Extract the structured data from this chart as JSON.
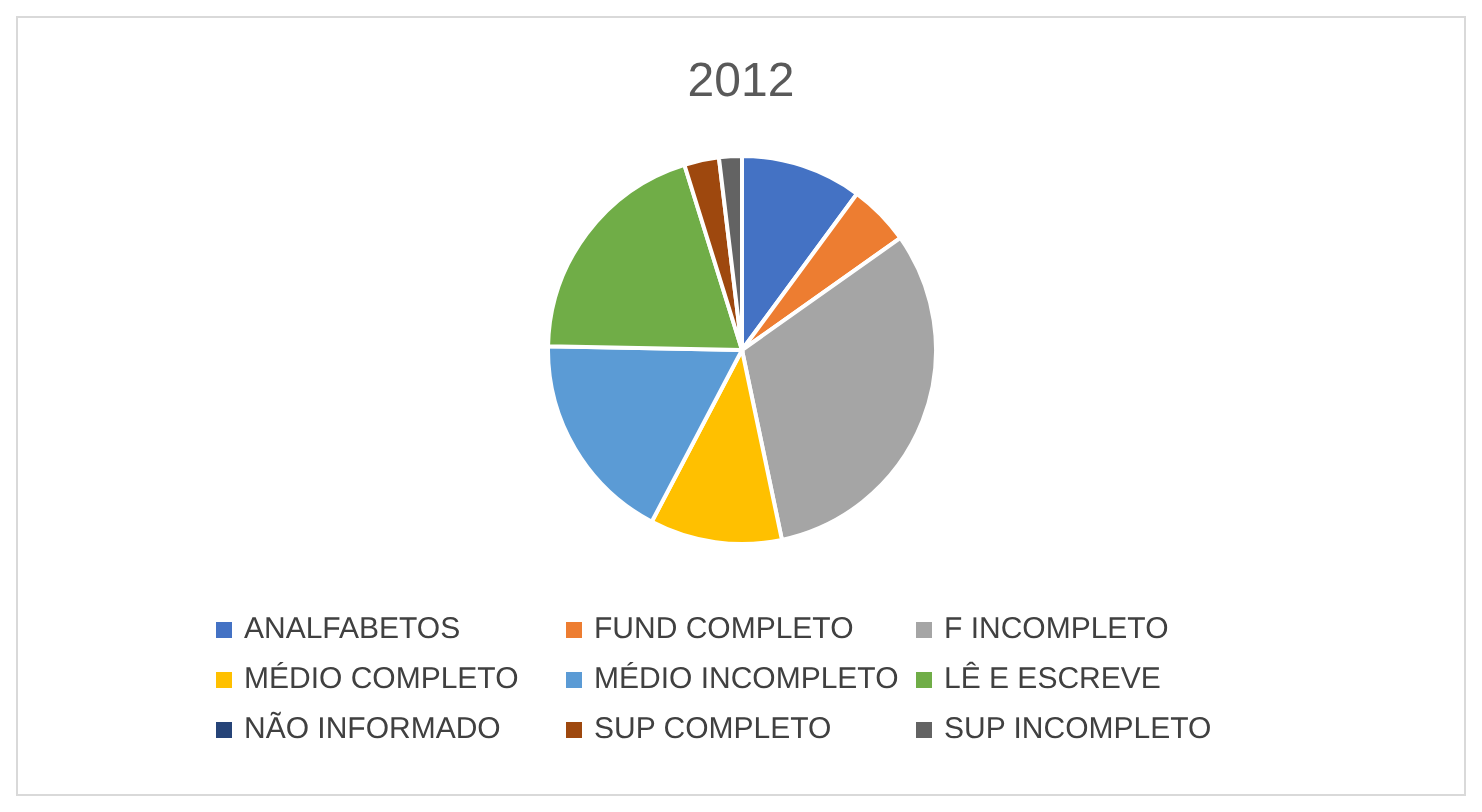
{
  "chart_data": {
    "type": "pie",
    "title": "2012",
    "categories": [
      "ANALFABETOS",
      "FUND COMPLETO",
      "F INCOMPLETO",
      "MÉDIO COMPLETO",
      "MÉDIO INCOMPLETO",
      "LÊ E ESCREVE",
      "NÃO INFORMADO",
      "SUP COMPLETO",
      "SUP INCOMPLETO"
    ],
    "values": [
      10.1,
      5.1,
      31.5,
      11.0,
      17.6,
      19.9,
      0,
      2.9,
      1.9
    ],
    "colors": [
      "#4472c4",
      "#ed7d31",
      "#a5a5a5",
      "#ffc000",
      "#5b9bd5",
      "#70ad47",
      "#264478",
      "#9e480e",
      "#636363"
    ],
    "legend": "bottom"
  }
}
